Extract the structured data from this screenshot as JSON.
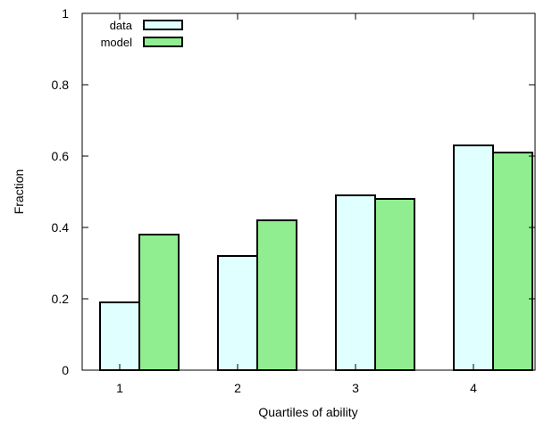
{
  "chart_data": {
    "type": "bar",
    "categories": [
      "1",
      "2",
      "3",
      "4"
    ],
    "series": [
      {
        "name": "data",
        "values": [
          0.19,
          0.32,
          0.49,
          0.63
        ],
        "color": "#e0ffff"
      },
      {
        "name": "model",
        "values": [
          0.38,
          0.42,
          0.48,
          0.61
        ],
        "color": "#90ee90"
      }
    ],
    "xlabel": "Quartiles of ability",
    "ylabel": "Fraction",
    "ylim": [
      0,
      1
    ],
    "yticks": [
      {
        "value": 0,
        "label": "0"
      },
      {
        "value": 0.2,
        "label": "0.2"
      },
      {
        "value": 0.4,
        "label": "0.4"
      },
      {
        "value": 0.6,
        "label": "0.6"
      },
      {
        "value": 0.8,
        "label": "0.8"
      },
      {
        "value": 1,
        "label": "1"
      }
    ],
    "grid": false,
    "legend_position": "top-left",
    "bar_outline_color": "#000000"
  }
}
